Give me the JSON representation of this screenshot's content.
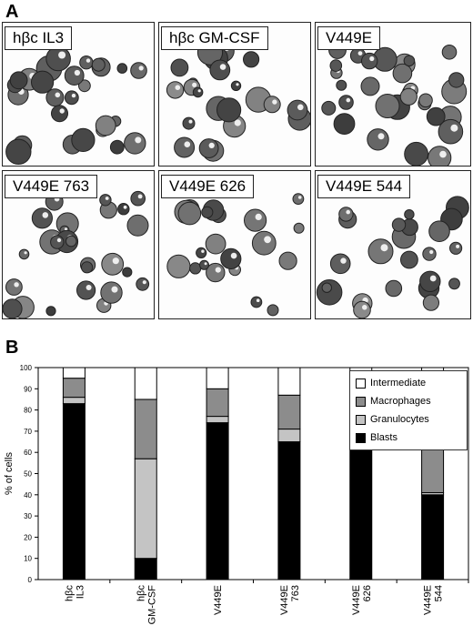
{
  "panel_a": {
    "letter": "A",
    "images": [
      {
        "label": "hβc IL3"
      },
      {
        "label": "hβc GM-CSF"
      },
      {
        "label": "V449E"
      },
      {
        "label": "V449E 763"
      },
      {
        "label": "V449E 626"
      },
      {
        "label": "V449E 544"
      }
    ]
  },
  "panel_b": {
    "letter": "B"
  },
  "colors": {
    "Intermediate": "#ffffff",
    "Macrophages": "#8c8c8c",
    "Granulocytes": "#c4c4c4",
    "Blasts": "#000000"
  },
  "chart_data": {
    "type": "bar",
    "stacked": true,
    "categories": [
      "hβc IL3",
      "hβc GM-CSF",
      "V449E",
      "V449E 763",
      "V449E 626",
      "V449E 544"
    ],
    "series": [
      {
        "name": "Blasts",
        "values": [
          83,
          10,
          74,
          65,
          73,
          40
        ]
      },
      {
        "name": "Granulocytes",
        "values": [
          3,
          47,
          3,
          6,
          0,
          1
        ]
      },
      {
        "name": "Macrophages",
        "values": [
          9,
          28,
          13,
          16,
          15,
          50
        ]
      },
      {
        "name": "Intermediate",
        "values": [
          5,
          15,
          10,
          13,
          12,
          9
        ]
      }
    ],
    "legend_order": [
      "Intermediate",
      "Macrophages",
      "Granulocytes",
      "Blasts"
    ],
    "ylabel": "% of cells",
    "xlabel": "",
    "ylim": [
      0,
      100
    ],
    "yticks": [
      0,
      10,
      20,
      30,
      40,
      50,
      60,
      70,
      80,
      90,
      100
    ],
    "legend_position": "top-right",
    "grid": false
  }
}
